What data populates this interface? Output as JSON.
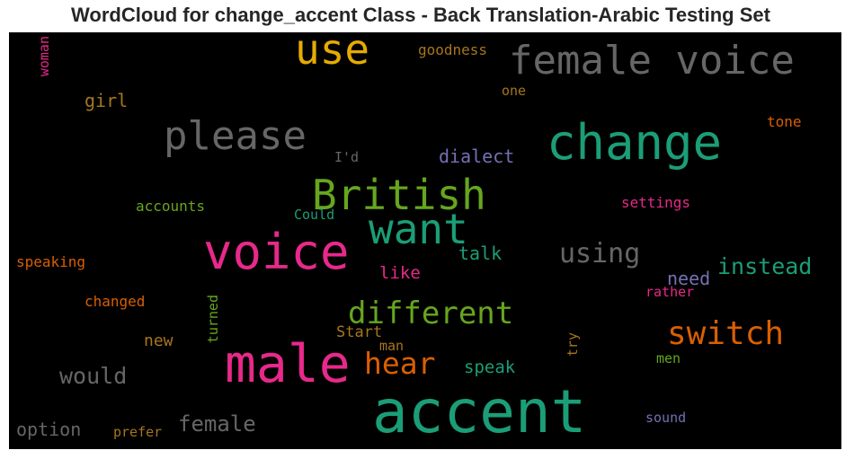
{
  "chart_data": {
    "type": "wordcloud",
    "title": "WordCloud for change_accent Class - Back Translation-Arabic Testing Set",
    "background": "#000000",
    "words": [
      {
        "text": "accent",
        "color": "#1b9e77",
        "weight": 1.0
      },
      {
        "text": "male",
        "color": "#e7298a",
        "weight": 0.87
      },
      {
        "text": "voice",
        "color": "#e7298a",
        "weight": 0.82
      },
      {
        "text": "change",
        "color": "#1b9e77",
        "weight": 0.8
      },
      {
        "text": "female voice",
        "color": "#666666",
        "weight": 0.68
      },
      {
        "text": "please",
        "color": "#666666",
        "weight": 0.68
      },
      {
        "text": "use",
        "color": "#e6ab02",
        "weight": 0.7
      },
      {
        "text": "British",
        "color": "#66a61e",
        "weight": 0.7
      },
      {
        "text": "want",
        "color": "#1b9e77",
        "weight": 0.7
      },
      {
        "text": "different",
        "color": "#66a61e",
        "weight": 0.55
      },
      {
        "text": "switch",
        "color": "#d95f02",
        "weight": 0.55
      },
      {
        "text": "hear",
        "color": "#d95f02",
        "weight": 0.52
      },
      {
        "text": "using",
        "color": "#666666",
        "weight": 0.45
      },
      {
        "text": "instead",
        "color": "#1b9e77",
        "weight": 0.42
      },
      {
        "text": "would",
        "color": "#666666",
        "weight": 0.42
      },
      {
        "text": "female",
        "color": "#666666",
        "weight": 0.4
      },
      {
        "text": "dialect",
        "color": "#7570b3",
        "weight": 0.35
      },
      {
        "text": "option",
        "color": "#666666",
        "weight": 0.35
      },
      {
        "text": "girl",
        "color": "#a6761d",
        "weight": 0.32
      },
      {
        "text": "talk",
        "color": "#1b9e77",
        "weight": 0.32
      },
      {
        "text": "need",
        "color": "#7570b3",
        "weight": 0.32
      },
      {
        "text": "like",
        "color": "#e7298a",
        "weight": 0.3
      },
      {
        "text": "speak",
        "color": "#1b9e77",
        "weight": 0.3
      },
      {
        "text": "new",
        "color": "#a6761d",
        "weight": 0.3
      },
      {
        "text": "Start",
        "color": "#a6761d",
        "weight": 0.28
      },
      {
        "text": "goodness",
        "color": "#a6761d",
        "weight": 0.25
      },
      {
        "text": "tone",
        "color": "#d95f02",
        "weight": 0.25
      },
      {
        "text": "accounts",
        "color": "#66a61e",
        "weight": 0.25
      },
      {
        "text": "Could",
        "color": "#1b9e77",
        "weight": 0.24
      },
      {
        "text": "settings",
        "color": "#e7298a",
        "weight": 0.25
      },
      {
        "text": "speaking",
        "color": "#d95f02",
        "weight": 0.25
      },
      {
        "text": "changed",
        "color": "#d95f02",
        "weight": 0.25
      },
      {
        "text": "I'd",
        "color": "#666666",
        "weight": 0.24
      },
      {
        "text": "one",
        "color": "#a6761d",
        "weight": 0.23
      },
      {
        "text": "woman",
        "color": "#e7298a",
        "weight": 0.23
      },
      {
        "text": "turned",
        "color": "#66a61e",
        "weight": 0.23
      },
      {
        "text": "rather",
        "color": "#e7298a",
        "weight": 0.24
      },
      {
        "text": "man",
        "color": "#a6761d",
        "weight": 0.23
      },
      {
        "text": "try",
        "color": "#a6761d",
        "weight": 0.23
      },
      {
        "text": "men",
        "color": "#66a61e",
        "weight": 0.23
      },
      {
        "text": "sound",
        "color": "#7570b3",
        "weight": 0.24
      },
      {
        "text": "prefer",
        "color": "#a6761d",
        "weight": 0.24
      }
    ]
  }
}
